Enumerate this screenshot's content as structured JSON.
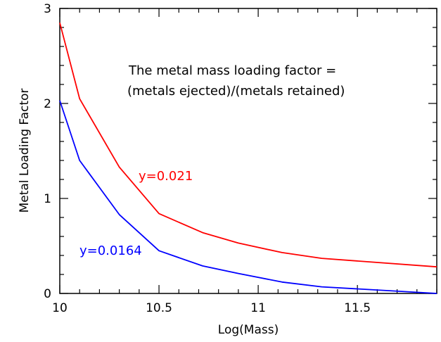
{
  "chart_data": {
    "type": "line",
    "title": "",
    "xlabel": "Log(Mass)",
    "ylabel": "Metal Loading Factor",
    "xlim": [
      10,
      11.9
    ],
    "ylim": [
      0,
      3
    ],
    "grid": false,
    "x_ticks": [
      {
        "value": 10,
        "label": "10"
      },
      {
        "value": 10.5,
        "label": "10.5"
      },
      {
        "value": 11,
        "label": "11"
      },
      {
        "value": 11.5,
        "label": "11.5"
      }
    ],
    "y_ticks": [
      {
        "value": 0,
        "label": "0"
      },
      {
        "value": 1,
        "label": "1"
      },
      {
        "value": 2,
        "label": "2"
      },
      {
        "value": 3,
        "label": "3"
      }
    ],
    "annotation": {
      "line1": "The metal mass loading factor =",
      "line2": "(metals ejected)/(metals retained)"
    },
    "series": [
      {
        "name": "y=0.021",
        "color": "#ff0000",
        "x": [
          10.0,
          10.1,
          10.3,
          10.5,
          10.72,
          10.9,
          11.12,
          11.32,
          11.9
        ],
        "y": [
          2.85,
          2.05,
          1.33,
          0.84,
          0.64,
          0.53,
          0.43,
          0.37,
          0.28
        ]
      },
      {
        "name": "y=0.0164",
        "color": "#0000ff",
        "x": [
          10.0,
          10.1,
          10.3,
          10.5,
          10.72,
          10.9,
          11.12,
          11.32,
          11.9
        ],
        "y": [
          2.03,
          1.4,
          0.83,
          0.45,
          0.29,
          0.21,
          0.12,
          0.07,
          0.0
        ]
      }
    ]
  }
}
